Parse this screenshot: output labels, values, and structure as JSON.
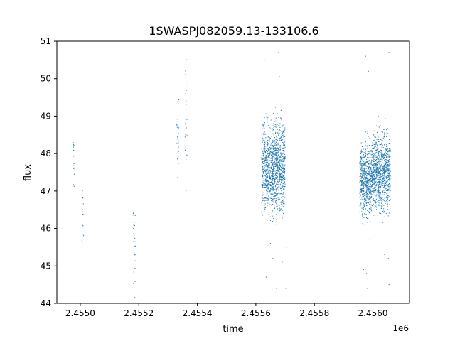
{
  "chart_data": {
    "type": "scatter",
    "title": "1SWASPJ082059.13-133106.6",
    "xlabel": "time",
    "ylabel": "flux",
    "x_offset_label": "1e6",
    "xlim": [
      2454870,
      2456075
    ],
    "ylim": [
      44,
      51
    ],
    "x_ticks": [
      2454950,
      2455150,
      2455350,
      2455550,
      2455750,
      2455950
    ],
    "x_tick_labels": [
      "2.4550",
      "2.4552",
      "2.4554",
      "2.4556",
      "2.4558",
      "2.4560"
    ],
    "y_ticks": [
      44,
      45,
      46,
      47,
      48,
      49,
      50,
      51
    ],
    "y_tick_labels": [
      "44",
      "45",
      "46",
      "47",
      "48",
      "49",
      "50",
      "51"
    ],
    "grid": false,
    "marker_color": "#1f77b4",
    "clusters": [
      {
        "x_start": 2454925,
        "x_end": 2454930,
        "y_center": 47.8,
        "y_spread": 0.4,
        "count": 18
      },
      {
        "x_start": 2454955,
        "x_end": 2454962,
        "y_center": 46.2,
        "y_spread": 0.35,
        "count": 16
      },
      {
        "x_start": 2455130,
        "x_end": 2455138,
        "y_center": 45.5,
        "y_spread": 0.6,
        "count": 26
      },
      {
        "x_start": 2455280,
        "x_end": 2455287,
        "y_center": 48.4,
        "y_spread": 0.45,
        "count": 28
      },
      {
        "x_start": 2455308,
        "x_end": 2455316,
        "y_center": 48.9,
        "y_spread": 0.9,
        "count": 26
      },
      {
        "x_start": 2455570,
        "x_end": 2455610,
        "y_center": 47.6,
        "y_spread": 0.55,
        "count": 650
      },
      {
        "x_start": 2455610,
        "x_end": 2455650,
        "y_center": 47.7,
        "y_spread": 0.6,
        "count": 700
      },
      {
        "x_start": 2455905,
        "x_end": 2455945,
        "y_center": 47.3,
        "y_spread": 0.45,
        "count": 650
      },
      {
        "x_start": 2455945,
        "x_end": 2456010,
        "y_center": 47.5,
        "y_spread": 0.5,
        "count": 1000
      }
    ],
    "outliers": [
      {
        "x": 2455580,
        "y": 50.5
      },
      {
        "x": 2455600,
        "y": 45.6
      },
      {
        "x": 2455608,
        "y": 45.2
      },
      {
        "x": 2455620,
        "y": 44.4
      },
      {
        "x": 2455628,
        "y": 50.7
      },
      {
        "x": 2455640,
        "y": 45.1
      },
      {
        "x": 2455655,
        "y": 45.5
      },
      {
        "x": 2455652,
        "y": 44.4
      },
      {
        "x": 2455585,
        "y": 44.7
      },
      {
        "x": 2455632,
        "y": 50.05
      },
      {
        "x": 2455925,
        "y": 50.6
      },
      {
        "x": 2455930,
        "y": 44.4
      },
      {
        "x": 2455935,
        "y": 50.2
      },
      {
        "x": 2455940,
        "y": 45.7
      },
      {
        "x": 2455932,
        "y": 44.6
      },
      {
        "x": 2455928,
        "y": 44.8
      },
      {
        "x": 2456005,
        "y": 50.7
      },
      {
        "x": 2456008,
        "y": 44.3
      },
      {
        "x": 2456003,
        "y": 45.2
      },
      {
        "x": 2455990,
        "y": 45.3
      },
      {
        "x": 2456005,
        "y": 44.5
      },
      {
        "x": 2455918,
        "y": 44.9
      }
    ]
  }
}
